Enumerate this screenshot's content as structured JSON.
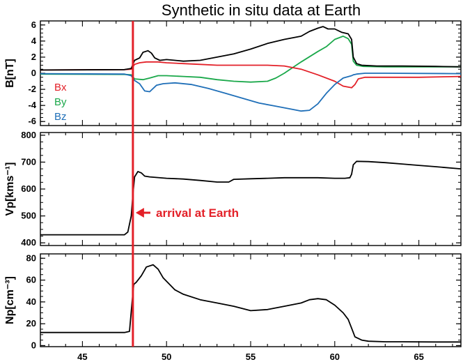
{
  "title": "Synthetic in situ data at Earth",
  "colors": {
    "bx": "#e32028",
    "by": "#1aa84a",
    "bz": "#1f6fb8",
    "total": "#000000",
    "marker": "#e32028"
  },
  "chart_data": [
    {
      "type": "line",
      "panel": "B",
      "ylabel": "B[nT]",
      "xlim": [
        42.5,
        67.5
      ],
      "ylim": [
        -6.5,
        6.5
      ],
      "yticks": [
        "6",
        "4",
        "2",
        "0",
        "-2",
        "-4",
        "-6"
      ],
      "legend": [
        "Bx",
        "By",
        "Bz"
      ],
      "series": [
        {
          "name": "",
          "key": "total",
          "x": [
            42.5,
            47.5,
            47.9,
            48.1,
            48.4,
            48.6,
            48.9,
            49.1,
            49.3,
            49.6,
            50.0,
            50.5,
            51.0,
            52.0,
            53.0,
            54.0,
            55.0,
            56.0,
            57.0,
            58.0,
            58.5,
            59.0,
            59.3,
            59.6,
            60.0,
            60.4,
            60.8,
            61.0,
            61.1,
            61.3,
            61.6,
            62.5,
            64.0,
            66.0,
            67.5
          ],
          "y": [
            0.4,
            0.45,
            0.6,
            1.6,
            1.9,
            2.6,
            2.8,
            2.5,
            1.9,
            1.6,
            1.7,
            1.6,
            1.5,
            1.6,
            2.0,
            2.4,
            3.0,
            3.7,
            4.2,
            4.6,
            5.2,
            5.6,
            5.8,
            5.5,
            5.5,
            5.1,
            4.9,
            4.2,
            2.0,
            1.2,
            1.0,
            0.9,
            0.9,
            0.85,
            0.8
          ]
        },
        {
          "name": "Bx",
          "key": "bx",
          "x": [
            42.5,
            47.5,
            47.9,
            48.1,
            48.4,
            48.8,
            49.5,
            50.0,
            51.0,
            52.0,
            53.0,
            54.0,
            55.0,
            56.0,
            57.0,
            58.0,
            59.0,
            60.0,
            60.5,
            61.0,
            61.2,
            61.4,
            61.8,
            63.0,
            65.0,
            67.5
          ],
          "y": [
            0.4,
            0.45,
            0.5,
            1.1,
            1.3,
            1.4,
            1.4,
            1.3,
            1.2,
            1.1,
            1.0,
            1.0,
            1.0,
            1.0,
            0.9,
            0.5,
            -0.2,
            -1.0,
            -1.6,
            -1.8,
            -1.4,
            -0.7,
            -0.5,
            -0.5,
            -0.5,
            -0.4
          ]
        },
        {
          "name": "By",
          "key": "by",
          "x": [
            42.5,
            47.5,
            47.9,
            48.1,
            48.6,
            49.0,
            49.5,
            50.0,
            51.0,
            52.0,
            53.0,
            54.0,
            55.0,
            56.0,
            56.5,
            57.0,
            58.0,
            59.0,
            59.5,
            60.0,
            60.5,
            60.8,
            61.0,
            61.1,
            61.3,
            61.7,
            63.0,
            67.5
          ],
          "y": [
            -0.1,
            -0.15,
            -0.2,
            -0.7,
            -0.8,
            -0.6,
            -0.3,
            -0.3,
            -0.4,
            -0.5,
            -0.8,
            -1.0,
            -1.1,
            -1.0,
            -0.6,
            0.0,
            1.4,
            2.7,
            3.3,
            4.2,
            4.6,
            4.3,
            3.6,
            1.5,
            1.0,
            0.85,
            0.8,
            0.8
          ]
        },
        {
          "name": "Bz",
          "key": "bz",
          "x": [
            42.5,
            47.5,
            47.9,
            48.1,
            48.4,
            48.7,
            49.0,
            49.4,
            49.8,
            50.5,
            51.5,
            52.5,
            53.5,
            54.5,
            55.5,
            56.5,
            57.5,
            58.0,
            58.5,
            59.0,
            59.5,
            60.0,
            60.5,
            61.0,
            61.1,
            61.3,
            61.8,
            63.0,
            67.5
          ],
          "y": [
            -0.05,
            -0.1,
            -0.3,
            -0.9,
            -1.3,
            -2.2,
            -2.3,
            -1.5,
            -1.3,
            -1.2,
            -1.4,
            -1.9,
            -2.5,
            -3.1,
            -3.7,
            -4.1,
            -4.5,
            -4.7,
            -4.6,
            -3.8,
            -2.5,
            -1.4,
            -0.6,
            -0.3,
            -0.2,
            -0.1,
            0.0,
            0.0,
            -0.05
          ]
        }
      ]
    },
    {
      "type": "line",
      "panel": "V",
      "ylabel": "Vp[kms⁻¹]",
      "xlim": [
        42.5,
        67.5
      ],
      "ylim": [
        390,
        810
      ],
      "yticks": [
        "800",
        "700",
        "600",
        "500",
        "400"
      ],
      "series": [
        {
          "name": "",
          "key": "total",
          "x": [
            42.5,
            47.5,
            47.7,
            47.9,
            48.0,
            48.1,
            48.3,
            48.5,
            48.7,
            49.0,
            50.0,
            51.0,
            52.0,
            53.0,
            53.7,
            54.0,
            55.0,
            56.0,
            57.0,
            58.0,
            59.0,
            60.0,
            60.6,
            60.9,
            61.0,
            61.1,
            61.3,
            62.0,
            63.0,
            64.0,
            65.0,
            66.0,
            67.5
          ],
          "y": [
            430,
            430,
            440,
            500,
            580,
            645,
            665,
            660,
            648,
            645,
            640,
            637,
            632,
            626,
            626,
            636,
            638,
            640,
            642,
            642,
            642,
            640,
            640,
            642,
            655,
            690,
            703,
            702,
            698,
            693,
            688,
            683,
            675
          ]
        }
      ]
    },
    {
      "type": "line",
      "panel": "N",
      "ylabel": "Np[cm⁻³]",
      "xlim": [
        42.5,
        67.5
      ],
      "ylim": [
        -1,
        84
      ],
      "yticks": [
        "80",
        "60",
        "40",
        "20",
        "0"
      ],
      "series": [
        {
          "name": "",
          "key": "total",
          "x": [
            42.5,
            47.5,
            47.8,
            47.95,
            48.05,
            48.2,
            48.5,
            48.8,
            49.2,
            49.5,
            49.8,
            50.5,
            51.0,
            52.0,
            53.0,
            54.0,
            55.0,
            56.0,
            57.0,
            58.0,
            58.5,
            59.0,
            59.5,
            60.0,
            60.5,
            60.8,
            61.0,
            61.2,
            61.6,
            62.0,
            63.0,
            64.0,
            66.0,
            67.5
          ],
          "y": [
            12,
            12,
            13,
            40,
            56,
            58,
            64,
            72,
            74,
            70,
            62,
            51,
            47,
            42,
            39,
            36,
            32,
            33,
            36,
            39,
            42,
            43,
            42,
            37,
            30,
            24,
            16,
            8,
            5,
            4,
            3.5,
            3.5,
            3.3,
            3.3
          ]
        }
      ]
    }
  ],
  "xaxis": {
    "ticks": [
      "45",
      "50",
      "55",
      "60",
      "65"
    ],
    "xlim": [
      42.5,
      67.5
    ]
  },
  "event": {
    "x": 48,
    "label": "arrival at Earth"
  }
}
